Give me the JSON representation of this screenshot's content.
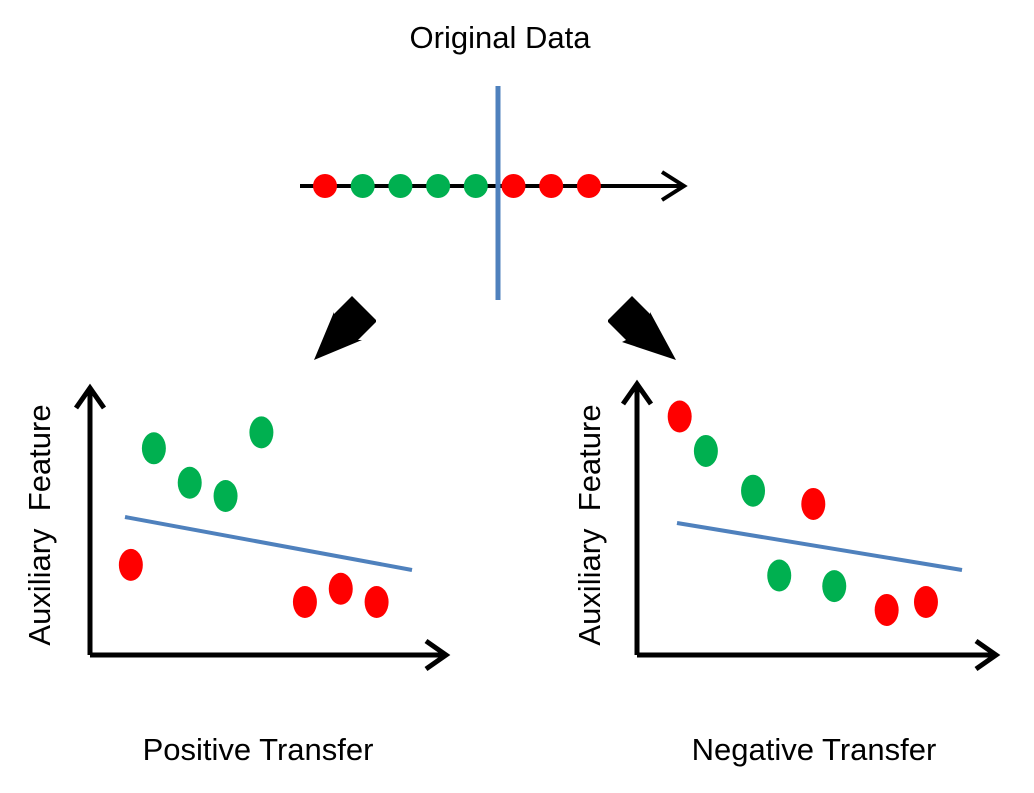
{
  "title": "Original Data",
  "colors": {
    "red": "#ff0000",
    "green": "#00b050",
    "boundary": "#4f81bd",
    "axis": "#000000"
  },
  "original": {
    "points": [
      "red",
      "green",
      "green",
      "green",
      "green",
      "red",
      "red",
      "red"
    ]
  },
  "panels": {
    "positive": {
      "caption": "Positive Transfer",
      "ylabel": "Auxiliary  Feature",
      "points": [
        {
          "class": "green",
          "x": 0.23,
          "y": 0.78
        },
        {
          "class": "green",
          "x": 0.37,
          "y": 0.65
        },
        {
          "class": "green",
          "x": 0.51,
          "y": 0.6
        },
        {
          "class": "green",
          "x": 0.65,
          "y": 0.84
        },
        {
          "class": "red",
          "x": 0.14,
          "y": 0.34
        },
        {
          "class": "red",
          "x": 0.82,
          "y": 0.2
        },
        {
          "class": "red",
          "x": 0.96,
          "y": 0.25
        },
        {
          "class": "red",
          "x": 1.1,
          "y": 0.2
        }
      ]
    },
    "negative": {
      "caption": "Negative Transfer",
      "ylabel": "Auxiliary  Feature",
      "points": [
        {
          "class": "red",
          "x": 0.14,
          "y": 0.9
        },
        {
          "class": "green",
          "x": 0.24,
          "y": 0.77
        },
        {
          "class": "green",
          "x": 0.42,
          "y": 0.62
        },
        {
          "class": "red",
          "x": 0.65,
          "y": 0.57
        },
        {
          "class": "green",
          "x": 0.52,
          "y": 0.3
        },
        {
          "class": "green",
          "x": 0.73,
          "y": 0.26
        },
        {
          "class": "red",
          "x": 0.93,
          "y": 0.17
        },
        {
          "class": "red",
          "x": 1.08,
          "y": 0.2
        }
      ]
    }
  }
}
